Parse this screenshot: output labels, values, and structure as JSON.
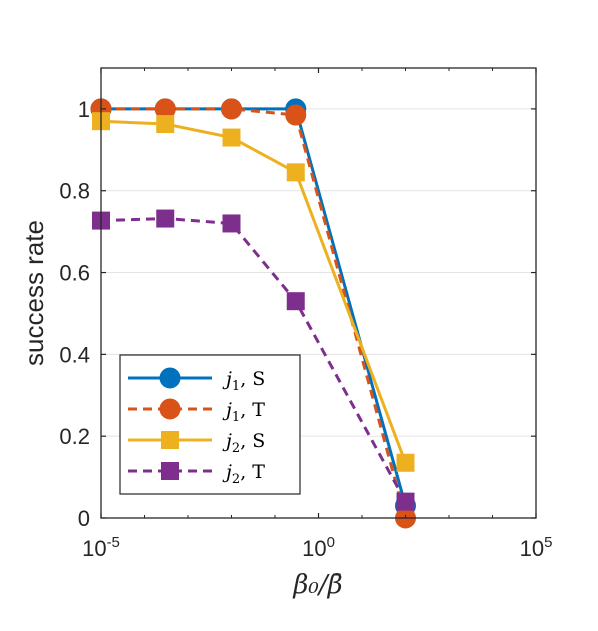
{
  "chart_data": {
    "type": "line",
    "ylabel": "success rate",
    "xlabel": "β₀/β̄",
    "xscale": "log",
    "xlim": [
      1e-05,
      100000
    ],
    "ylim": [
      0,
      1.1
    ],
    "xticks": [
      {
        "value": 1e-05,
        "base": "10",
        "exp": "-5"
      },
      {
        "value": 1,
        "base": "10",
        "exp": "0"
      },
      {
        "value": 100000,
        "base": "10",
        "exp": "5"
      }
    ],
    "yticks": [
      {
        "value": 0,
        "label": "0"
      },
      {
        "value": 0.2,
        "label": "0.2"
      },
      {
        "value": 0.4,
        "label": "0.4"
      },
      {
        "value": 0.6,
        "label": "0.6"
      },
      {
        "value": 0.8,
        "label": "0.8"
      },
      {
        "value": 1,
        "label": "1"
      }
    ],
    "grid": "horizontal",
    "legend_position": "bottom-left",
    "x": [
      1e-05,
      0.0003,
      0.01,
      0.3,
      100
    ],
    "series": [
      {
        "name": "j₁, S",
        "var": "j",
        "sub": "1",
        "suffix": ", S",
        "color": "#0072BD",
        "dash": "solid",
        "marker": "circle",
        "values": [
          1.0,
          1.0,
          1.0,
          1.0,
          0.03
        ]
      },
      {
        "name": "j₁, T",
        "var": "j",
        "sub": "1",
        "suffix": ", T",
        "color": "#D95319",
        "dash": "dashed",
        "marker": "circle",
        "values": [
          1.0,
          1.0,
          1.0,
          0.985,
          0.0
        ]
      },
      {
        "name": "j₂, S",
        "var": "j",
        "sub": "2",
        "suffix": ", S",
        "color": "#EDB120",
        "dash": "solid",
        "marker": "square",
        "values": [
          0.97,
          0.963,
          0.93,
          0.845,
          0.135
        ]
      },
      {
        "name": "j₂, T",
        "var": "j",
        "sub": "2",
        "suffix": ", T",
        "color": "#7E2F8E",
        "dash": "dashed",
        "marker": "square",
        "values": [
          0.727,
          0.732,
          0.72,
          0.53,
          0.04
        ]
      }
    ]
  }
}
